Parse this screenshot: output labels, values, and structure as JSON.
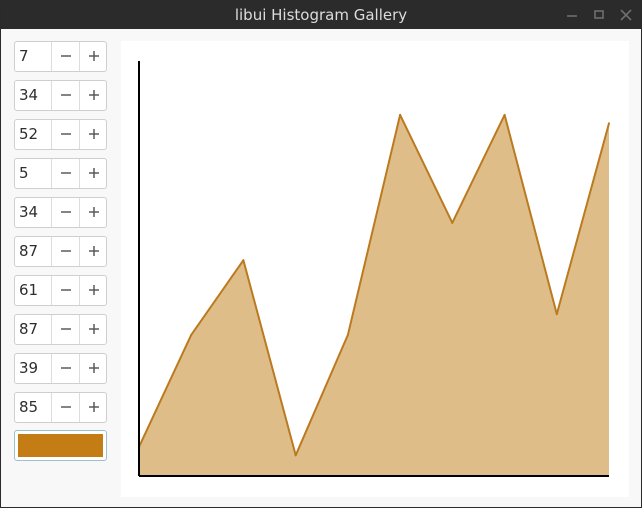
{
  "window": {
    "title": "libui Histogram Gallery",
    "buttons": [
      "minimize-icon",
      "maximize-icon",
      "close-icon"
    ]
  },
  "spinboxes": [
    {
      "value": "7"
    },
    {
      "value": "34"
    },
    {
      "value": "52"
    },
    {
      "value": "5"
    },
    {
      "value": "34"
    },
    {
      "value": "87"
    },
    {
      "value": "61"
    },
    {
      "value": "87"
    },
    {
      "value": "39"
    },
    {
      "value": "85"
    }
  ],
  "spin_icons": {
    "minus": "minus-icon",
    "plus": "plus-icon"
  },
  "color_button": {
    "color": "#c47d14"
  },
  "colors": {
    "line": "#bb7a20",
    "fill": "#dfbd88",
    "axis": "#000000",
    "titlebar": "#2b2b2b"
  },
  "chart_data": {
    "type": "area",
    "x": [
      0,
      1,
      2,
      3,
      4,
      5,
      6,
      7,
      8,
      9
    ],
    "values": [
      7,
      34,
      52,
      5,
      34,
      87,
      61,
      87,
      39,
      85
    ],
    "ylim": [
      0,
      100
    ],
    "grid": false,
    "title": "",
    "xlabel": "",
    "ylabel": ""
  }
}
